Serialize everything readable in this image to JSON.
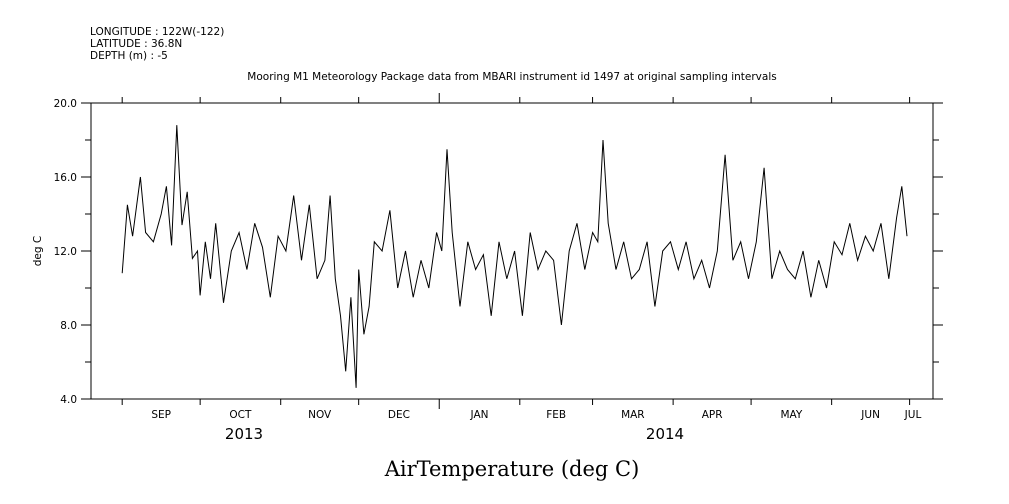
{
  "header": {
    "longitude": "LONGITUDE : 122W(-122)",
    "latitude": "LATITUDE : 36.8N",
    "depth": "DEPTH (m) : -5"
  },
  "chart_data": {
    "type": "line",
    "title": "Mooring M1 Meteorology Package data from MBARI instrument id 1497 at original sampling intervals",
    "xlabel": "AirTemperature (deg C)",
    "ylabel": "deg C",
    "ylim": [
      4.0,
      20.0
    ],
    "y_ticks": [
      "4.0",
      "8.0",
      "12.0",
      "16.0",
      "20.0"
    ],
    "x_months": [
      "SEP",
      "OCT",
      "NOV",
      "DEC",
      "JAN",
      "FEB",
      "MAR",
      "APR",
      "MAY",
      "JUN",
      "JUL"
    ],
    "x_years": [
      "2013",
      "2014"
    ],
    "xlim": [
      "2013-08-20",
      "2014-07-10"
    ],
    "grid": false,
    "series": [
      {
        "color": "#000000",
        "x": [
          "2013-09-01",
          "2013-09-03",
          "2013-09-05",
          "2013-09-08",
          "2013-09-10",
          "2013-09-13",
          "2013-09-16",
          "2013-09-18",
          "2013-09-20",
          "2013-09-22",
          "2013-09-24",
          "2013-09-26",
          "2013-09-28",
          "2013-09-30",
          "2013-10-01",
          "2013-10-03",
          "2013-10-05",
          "2013-10-07",
          "2013-10-10",
          "2013-10-13",
          "2013-10-16",
          "2013-10-19",
          "2013-10-22",
          "2013-10-25",
          "2013-10-28",
          "2013-10-31",
          "2013-11-03",
          "2013-11-06",
          "2013-11-09",
          "2013-11-12",
          "2013-11-15",
          "2013-11-18",
          "2013-11-20",
          "2013-11-22",
          "2013-11-24",
          "2013-11-26",
          "2013-11-28",
          "2013-11-30",
          "2013-12-01",
          "2013-12-03",
          "2013-12-05",
          "2013-12-07",
          "2013-12-10",
          "2013-12-13",
          "2013-12-16",
          "2013-12-19",
          "2013-12-22",
          "2013-12-25",
          "2013-12-28",
          "2013-12-31",
          "2014-01-02",
          "2014-01-04",
          "2014-01-06",
          "2014-01-09",
          "2014-01-12",
          "2014-01-15",
          "2014-01-18",
          "2014-01-21",
          "2014-01-24",
          "2014-01-27",
          "2014-01-30",
          "2014-02-02",
          "2014-02-05",
          "2014-02-08",
          "2014-02-11",
          "2014-02-14",
          "2014-02-17",
          "2014-02-20",
          "2014-02-23",
          "2014-02-26",
          "2014-03-01",
          "2014-03-03",
          "2014-03-05",
          "2014-03-07",
          "2014-03-10",
          "2014-03-13",
          "2014-03-16",
          "2014-03-19",
          "2014-03-22",
          "2014-03-25",
          "2014-03-28",
          "2014-03-31",
          "2014-04-03",
          "2014-04-06",
          "2014-04-09",
          "2014-04-12",
          "2014-04-15",
          "2014-04-18",
          "2014-04-21",
          "2014-04-24",
          "2014-04-27",
          "2014-04-30",
          "2014-05-03",
          "2014-05-06",
          "2014-05-09",
          "2014-05-12",
          "2014-05-15",
          "2014-05-18",
          "2014-05-21",
          "2014-05-24",
          "2014-05-27",
          "2014-05-30",
          "2014-06-02",
          "2014-06-05",
          "2014-06-08",
          "2014-06-11",
          "2014-06-14",
          "2014-06-17",
          "2014-06-20",
          "2014-06-23",
          "2014-06-26",
          "2014-06-28",
          "2014-06-30"
        ],
        "values": [
          10.8,
          14.5,
          12.8,
          16.0,
          13.0,
          12.5,
          14.0,
          15.5,
          12.3,
          18.8,
          13.4,
          15.2,
          11.6,
          12.0,
          9.6,
          12.5,
          10.5,
          13.5,
          9.2,
          12.0,
          13.0,
          11.0,
          13.5,
          12.2,
          9.5,
          12.8,
          12.0,
          15.0,
          11.5,
          14.5,
          10.5,
          11.5,
          15.0,
          10.5,
          8.5,
          5.5,
          9.5,
          4.6,
          11.0,
          7.5,
          9.0,
          12.5,
          12.0,
          14.2,
          10.0,
          12.0,
          9.5,
          11.5,
          10.0,
          13.0,
          12.0,
          17.5,
          13.0,
          9.0,
          12.5,
          11.0,
          11.8,
          8.5,
          12.5,
          10.5,
          12.0,
          8.5,
          13.0,
          11.0,
          12.0,
          11.5,
          8.0,
          12.0,
          13.5,
          11.0,
          13.0,
          12.5,
          18.0,
          13.5,
          11.0,
          12.5,
          10.5,
          11.0,
          12.5,
          9.0,
          12.0,
          12.5,
          11.0,
          12.5,
          10.5,
          11.5,
          10.0,
          12.0,
          17.2,
          11.5,
          12.5,
          10.5,
          12.5,
          16.5,
          10.5,
          12.0,
          11.0,
          10.5,
          12.0,
          9.5,
          11.5,
          10.0,
          12.5,
          11.8,
          13.5,
          11.5,
          12.8,
          12.0,
          13.5,
          10.5,
          13.8,
          15.5,
          12.8
        ]
      }
    ]
  }
}
